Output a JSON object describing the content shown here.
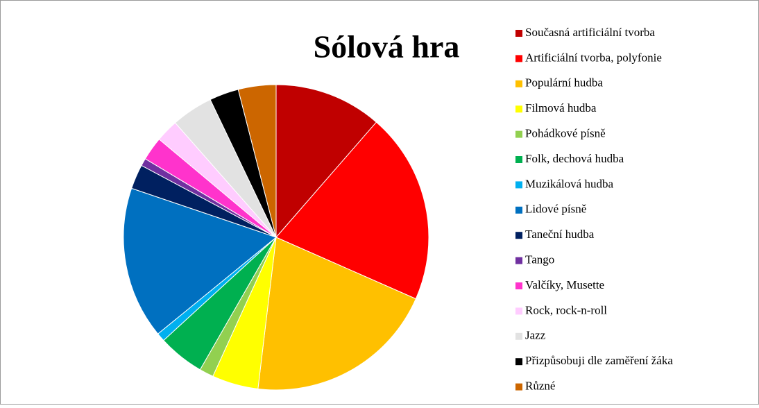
{
  "chart_data": {
    "type": "pie",
    "title": "Sólová hra",
    "categories": [
      "Současná artificiální tvorba",
      "Artificiální tvorba, polyfonie",
      "Populární hudba",
      "Filmová hudba",
      "Pohádkové písně",
      "Folk, dechová hudba",
      "Muzikálová hudba",
      "Lidové písně",
      "Taneční hudba",
      "Tango",
      "Valčíky, Musette",
      "Rock, rock-n-roll",
      "Jazz",
      "Přizpůsobuji dle zaměření žáka",
      "Různé"
    ],
    "values": [
      11.4,
      20.2,
      20.3,
      4.9,
      1.5,
      4.9,
      0.9,
      16.1,
      2.6,
      0.8,
      2.5,
      2.4,
      4.4,
      3.1,
      4.0
    ],
    "colors": [
      "#C00000",
      "#FF0000",
      "#FFC000",
      "#FFFF00",
      "#92D050",
      "#00B050",
      "#00B0F0",
      "#0070C0",
      "#002060",
      "#7030A0",
      "#FF33CC",
      "#FFCCFF",
      "#E2E2E2",
      "#000000",
      "#CC6600"
    ],
    "legend": "right"
  }
}
